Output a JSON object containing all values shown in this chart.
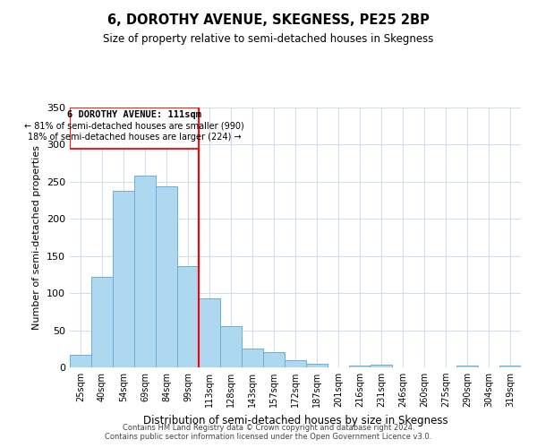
{
  "title": "6, DOROTHY AVENUE, SKEGNESS, PE25 2BP",
  "subtitle": "Size of property relative to semi-detached houses in Skegness",
  "xlabel": "Distribution of semi-detached houses by size in Skegness",
  "ylabel": "Number of semi-detached properties",
  "bar_labels": [
    "25sqm",
    "40sqm",
    "54sqm",
    "69sqm",
    "84sqm",
    "99sqm",
    "113sqm",
    "128sqm",
    "143sqm",
    "157sqm",
    "172sqm",
    "187sqm",
    "201sqm",
    "216sqm",
    "231sqm",
    "246sqm",
    "260sqm",
    "275sqm",
    "290sqm",
    "304sqm",
    "319sqm"
  ],
  "bar_values": [
    17,
    122,
    238,
    258,
    244,
    136,
    93,
    56,
    25,
    20,
    10,
    5,
    0,
    3,
    4,
    0,
    0,
    0,
    3,
    0,
    2
  ],
  "bar_color": "#add8f0",
  "bar_edge_color": "#6baed6",
  "highlight_index": 6,
  "vline_color": "red",
  "annotation_title": "6 DOROTHY AVENUE: 111sqm",
  "annotation_line1": "← 81% of semi-detached houses are smaller (990)",
  "annotation_line2": "18% of semi-detached houses are larger (224) →",
  "ylim": [
    0,
    350
  ],
  "yticks": [
    0,
    50,
    100,
    150,
    200,
    250,
    300,
    350
  ],
  "footer1": "Contains HM Land Registry data © Crown copyright and database right 2024.",
  "footer2": "Contains public sector information licensed under the Open Government Licence v3.0.",
  "background_color": "#ffffff",
  "grid_color": "#ccddee"
}
